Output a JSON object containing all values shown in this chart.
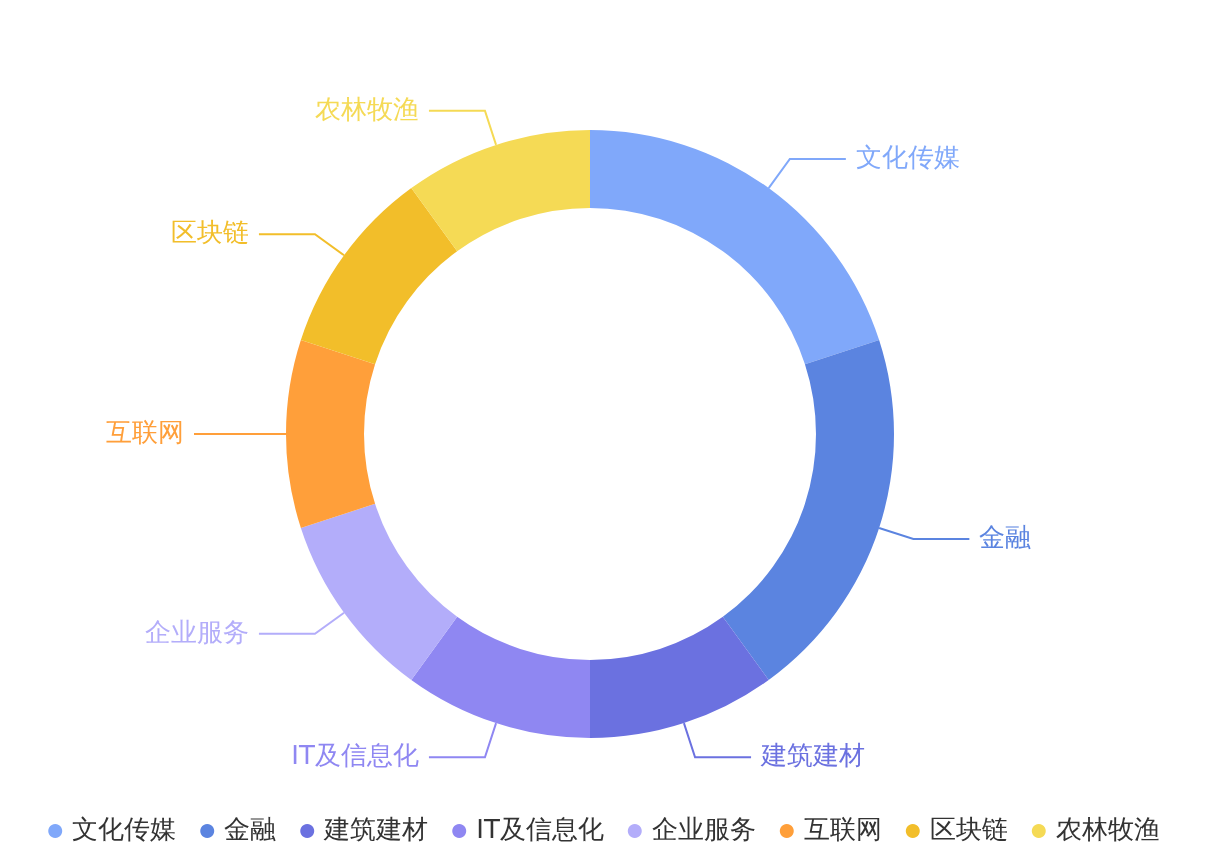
{
  "chart_data": {
    "type": "donut",
    "categories": [
      "文化传媒",
      "金融",
      "建筑建材",
      "IT及信息化",
      "企业服务",
      "互联网",
      "区块链",
      "农林牧渔"
    ],
    "values": [
      20,
      20,
      10,
      10,
      10,
      10,
      10,
      10
    ],
    "colors": [
      "#80a8fa",
      "#5b84e0",
      "#6b71e0",
      "#8f87f2",
      "#b3adfa",
      "#ff9f3a",
      "#f2be2a",
      "#f5da55"
    ],
    "legend": "bottom"
  }
}
